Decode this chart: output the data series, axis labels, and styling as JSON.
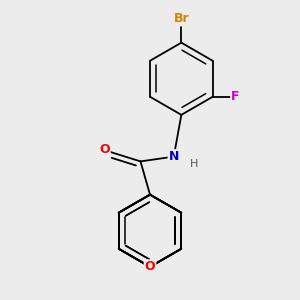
{
  "bg_color": "#ececec",
  "bond_color": "#000000",
  "atom_colors": {
    "O_xanthene": "#ff0000",
    "O_carbonyl": "#ff0000",
    "N": "#0000cc",
    "H": "#555555",
    "Br": "#cc8800",
    "F": "#cc00cc"
  },
  "figsize": [
    3.0,
    3.0
  ],
  "dpi": 100
}
